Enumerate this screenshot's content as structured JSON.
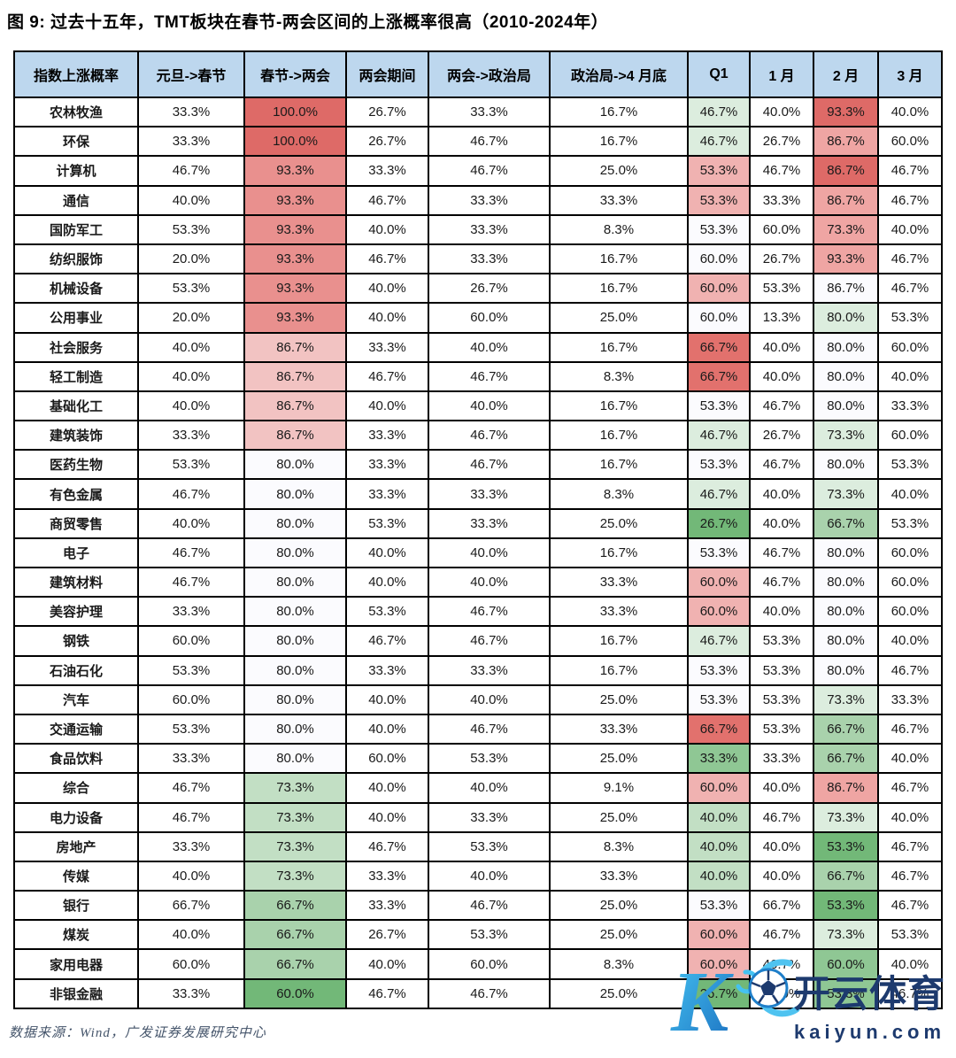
{
  "title": "图 9: 过去十五年，TMT板块在春节-两会区间的上涨概率很高（2010-2024年）",
  "source_note": "数据来源：Wind，广发证券发展研究中心",
  "watermark": {
    "logo_letter": "K",
    "brand_name": "开云体育",
    "brand_url": "kaiyun.com",
    "navy": "#1D3A6E",
    "blue_light": "#45C2F1",
    "blue_dark": "#1B6FC0"
  },
  "palette": {
    "r3": "#DE6A67",
    "rC": "#E9908E",
    "rD": "#EFA5A3",
    "rE": "#F2C3C2",
    "rB": "#E2716D",
    "rF": "#F0B2B1",
    "wf": "#FBFBFE",
    "gA": "#DCEDDE",
    "gB": "#C2DFC4",
    "gC": "#A9D2AC",
    "gD": "#8FC794",
    "gE": "#72B878",
    "header_bg": "#BDD7EE",
    "border": "#000000"
  },
  "table": {
    "fills": [
      [
        "",
        "r3",
        "",
        "",
        "",
        "gA",
        "",
        "r3",
        ""
      ],
      [
        "",
        "r3",
        "",
        "",
        "",
        "gA",
        "",
        "rD",
        ""
      ],
      [
        "",
        "rC",
        "",
        "",
        "",
        "rF",
        "",
        "r3",
        ""
      ],
      [
        "",
        "rC",
        "",
        "",
        "",
        "rF",
        "",
        "rD",
        ""
      ],
      [
        "",
        "rC",
        "",
        "",
        "",
        "wf",
        "",
        "rD",
        ""
      ],
      [
        "",
        "rC",
        "",
        "",
        "",
        "wf",
        "",
        "rD",
        ""
      ],
      [
        "",
        "rC",
        "",
        "",
        "",
        "rF",
        "",
        "wf",
        ""
      ],
      [
        "",
        "rC",
        "",
        "",
        "",
        "wf",
        "",
        "gA",
        ""
      ],
      [
        "",
        "rE",
        "",
        "",
        "",
        "rB",
        "",
        "wf",
        ""
      ],
      [
        "",
        "rE",
        "",
        "",
        "",
        "rB",
        "",
        "wf",
        ""
      ],
      [
        "",
        "rE",
        "",
        "",
        "",
        "wf",
        "",
        "wf",
        ""
      ],
      [
        "",
        "rE",
        "",
        "",
        "",
        "gA",
        "",
        "gA",
        ""
      ],
      [
        "",
        "wf",
        "",
        "",
        "",
        "wf",
        "",
        "wf",
        ""
      ],
      [
        "",
        "wf",
        "",
        "",
        "",
        "gA",
        "",
        "gA",
        ""
      ],
      [
        "",
        "wf",
        "",
        "",
        "",
        "gE",
        "",
        "gC",
        ""
      ],
      [
        "",
        "wf",
        "",
        "",
        "",
        "wf",
        "",
        "wf",
        ""
      ],
      [
        "",
        "wf",
        "",
        "",
        "",
        "rF",
        "",
        "wf",
        ""
      ],
      [
        "",
        "wf",
        "",
        "",
        "",
        "rF",
        "",
        "wf",
        ""
      ],
      [
        "",
        "wf",
        "",
        "",
        "",
        "gA",
        "",
        "wf",
        ""
      ],
      [
        "",
        "wf",
        "",
        "",
        "",
        "wf",
        "",
        "wf",
        ""
      ],
      [
        "",
        "wf",
        "",
        "",
        "",
        "wf",
        "",
        "gA",
        ""
      ],
      [
        "",
        "wf",
        "",
        "",
        "",
        "rB",
        "",
        "gC",
        ""
      ],
      [
        "",
        "wf",
        "",
        "",
        "",
        "gD",
        "",
        "gC",
        ""
      ],
      [
        "",
        "gB",
        "",
        "",
        "",
        "rF",
        "",
        "rD",
        ""
      ],
      [
        "",
        "gB",
        "",
        "",
        "",
        "gB",
        "",
        "gA",
        ""
      ],
      [
        "",
        "gB",
        "",
        "",
        "",
        "gB",
        "",
        "gE",
        ""
      ],
      [
        "",
        "gB",
        "",
        "",
        "",
        "gB",
        "",
        "gC",
        ""
      ],
      [
        "",
        "gC",
        "",
        "",
        "",
        "wf",
        "",
        "gE",
        ""
      ],
      [
        "",
        "gC",
        "",
        "",
        "",
        "rF",
        "",
        "gA",
        ""
      ],
      [
        "",
        "gC",
        "",
        "",
        "",
        "rF",
        "",
        "gD",
        ""
      ],
      [
        "",
        "gE",
        "",
        "",
        "",
        "gE",
        "",
        "gD",
        ""
      ]
    ]
  },
  "chart_data": {
    "type": "table",
    "title": "图 9: 过去十五年，TMT板块在春节-两会区间的上涨概率很高（2010-2024年）",
    "legend_note": "conditional formatting heatmap: red = high probability, green = low probability; colored columns: 春节->两会, Q1, 2月",
    "columns": [
      "指数上涨概率",
      "元旦->春节",
      "春节->两会",
      "两会期间",
      "两会->政治局",
      "政治局->4 月底",
      "Q1",
      "1 月",
      "2 月",
      "3 月"
    ],
    "rows": [
      "农林牧渔",
      "环保",
      "计算机",
      "通信",
      "国防军工",
      "纺织服饰",
      "机械设备",
      "公用事业",
      "社会服务",
      "轻工制造",
      "基础化工",
      "建筑装饰",
      "医药生物",
      "有色金属",
      "商贸零售",
      "电子",
      "建筑材料",
      "美容护理",
      "钢铁",
      "石油石化",
      "汽车",
      "交通运输",
      "食品饮料",
      "综合",
      "电力设备",
      "房地产",
      "传媒",
      "银行",
      "煤炭",
      "家用电器",
      "非银金融"
    ],
    "values_pct": [
      [
        33.3,
        100.0,
        26.7,
        33.3,
        16.7,
        46.7,
        40.0,
        93.3,
        40.0
      ],
      [
        33.3,
        100.0,
        26.7,
        46.7,
        16.7,
        46.7,
        26.7,
        86.7,
        60.0
      ],
      [
        46.7,
        93.3,
        33.3,
        46.7,
        25.0,
        53.3,
        46.7,
        86.7,
        46.7
      ],
      [
        40.0,
        93.3,
        46.7,
        33.3,
        33.3,
        53.3,
        33.3,
        86.7,
        46.7
      ],
      [
        53.3,
        93.3,
        40.0,
        33.3,
        8.3,
        53.3,
        60.0,
        73.3,
        40.0
      ],
      [
        20.0,
        93.3,
        46.7,
        33.3,
        16.7,
        60.0,
        26.7,
        93.3,
        46.7
      ],
      [
        53.3,
        93.3,
        40.0,
        26.7,
        16.7,
        60.0,
        53.3,
        86.7,
        46.7
      ],
      [
        20.0,
        93.3,
        40.0,
        60.0,
        25.0,
        60.0,
        13.3,
        80.0,
        53.3
      ],
      [
        40.0,
        86.7,
        33.3,
        40.0,
        16.7,
        66.7,
        40.0,
        80.0,
        60.0
      ],
      [
        40.0,
        86.7,
        46.7,
        46.7,
        8.3,
        66.7,
        40.0,
        80.0,
        40.0
      ],
      [
        40.0,
        86.7,
        40.0,
        40.0,
        16.7,
        53.3,
        46.7,
        80.0,
        33.3
      ],
      [
        33.3,
        86.7,
        33.3,
        46.7,
        16.7,
        46.7,
        26.7,
        73.3,
        60.0
      ],
      [
        53.3,
        80.0,
        33.3,
        46.7,
        16.7,
        53.3,
        46.7,
        80.0,
        53.3
      ],
      [
        46.7,
        80.0,
        33.3,
        33.3,
        8.3,
        46.7,
        40.0,
        73.3,
        40.0
      ],
      [
        40.0,
        80.0,
        53.3,
        33.3,
        25.0,
        26.7,
        40.0,
        66.7,
        53.3
      ],
      [
        46.7,
        80.0,
        40.0,
        40.0,
        16.7,
        53.3,
        46.7,
        80.0,
        60.0
      ],
      [
        46.7,
        80.0,
        40.0,
        40.0,
        33.3,
        60.0,
        46.7,
        80.0,
        60.0
      ],
      [
        33.3,
        80.0,
        53.3,
        46.7,
        33.3,
        60.0,
        40.0,
        80.0,
        60.0
      ],
      [
        60.0,
        80.0,
        46.7,
        46.7,
        16.7,
        46.7,
        53.3,
        80.0,
        40.0
      ],
      [
        53.3,
        80.0,
        33.3,
        33.3,
        16.7,
        53.3,
        53.3,
        80.0,
        46.7
      ],
      [
        60.0,
        80.0,
        40.0,
        40.0,
        25.0,
        53.3,
        53.3,
        73.3,
        33.3
      ],
      [
        53.3,
        80.0,
        40.0,
        46.7,
        33.3,
        66.7,
        53.3,
        66.7,
        46.7
      ],
      [
        33.3,
        80.0,
        60.0,
        53.3,
        25.0,
        33.3,
        33.3,
        66.7,
        40.0
      ],
      [
        46.7,
        73.3,
        40.0,
        40.0,
        9.1,
        60.0,
        40.0,
        86.7,
        46.7
      ],
      [
        46.7,
        73.3,
        40.0,
        33.3,
        25.0,
        40.0,
        46.7,
        73.3,
        40.0
      ],
      [
        33.3,
        73.3,
        46.7,
        53.3,
        8.3,
        40.0,
        40.0,
        53.3,
        46.7
      ],
      [
        40.0,
        73.3,
        33.3,
        40.0,
        33.3,
        40.0,
        40.0,
        66.7,
        46.7
      ],
      [
        66.7,
        66.7,
        33.3,
        46.7,
        25.0,
        53.3,
        66.7,
        53.3,
        46.7
      ],
      [
        40.0,
        66.7,
        26.7,
        53.3,
        25.0,
        60.0,
        46.7,
        73.3,
        53.3
      ],
      [
        60.0,
        66.7,
        40.0,
        60.0,
        8.3,
        60.0,
        46.7,
        60.0,
        40.0
      ],
      [
        33.3,
        60.0,
        46.7,
        46.7,
        25.0,
        26.7,
        40.0,
        53.3,
        46.7
      ]
    ]
  }
}
